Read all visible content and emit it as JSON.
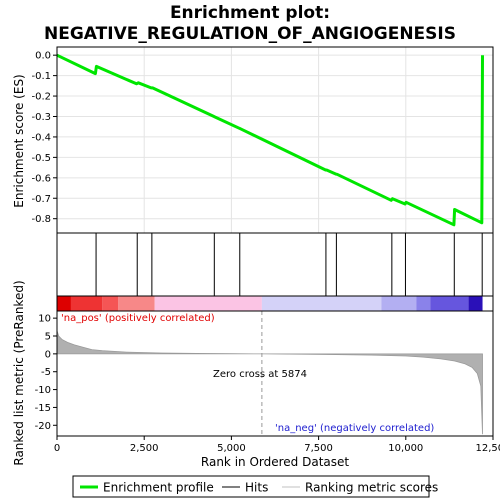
{
  "chart_data": {
    "type": "line",
    "title_line1": "Enrichment plot:",
    "title_line2": "NEGATIVE_REGULATION_OF_ANGIOGENESIS",
    "top_panel": {
      "ylabel": "Enrichment score (ES)",
      "ylim": [
        -0.87,
        0.04
      ],
      "yticks": [
        0.0,
        -0.1,
        -0.2,
        -0.3,
        -0.4,
        -0.5,
        -0.6,
        -0.7,
        -0.8
      ],
      "ytick_labels": [
        "0.0",
        "-0.1",
        "-0.2",
        "-0.3",
        "-0.4",
        "-0.5",
        "-0.6",
        "-0.7",
        "-0.8"
      ],
      "grid": true,
      "series": [
        {
          "name": "Enrichment profile",
          "color": "#00e600",
          "x": [
            0,
            1100,
            1130,
            2280,
            2330,
            2700,
            2740,
            4500,
            4520,
            5230,
            5260,
            7700,
            7730,
            8000,
            8030,
            9580,
            9620,
            9980,
            10010,
            11380,
            11400,
            12180,
            12200
          ],
          "y": [
            0.0,
            -0.09,
            -0.055,
            -0.14,
            -0.135,
            -0.16,
            -0.16,
            -0.3,
            -0.302,
            -0.358,
            -0.36,
            -0.562,
            -0.562,
            -0.582,
            -0.583,
            -0.71,
            -0.702,
            -0.728,
            -0.72,
            -0.83,
            -0.755,
            -0.82,
            0.0
          ]
        }
      ]
    },
    "hits": {
      "name": "Hits",
      "color": "#000000",
      "positions": [
        1120,
        2300,
        2720,
        4510,
        5240,
        7710,
        8010,
        9600,
        9990,
        11390,
        12190
      ]
    },
    "bottom_panel": {
      "ylabel": "Ranked list metric (PreRanked)",
      "ylim": [
        -23,
        12
      ],
      "yticks": [
        10,
        5,
        0,
        -5,
        -10,
        -15,
        -20
      ],
      "ytick_labels": [
        "10",
        "5",
        "0",
        "-5",
        "-10",
        "-15",
        "-20"
      ],
      "metric_name": "Ranking metric scores",
      "metric_color": "#b0b0b0",
      "metric_x": [
        0,
        50,
        150,
        300,
        500,
        800,
        1000,
        1300,
        2000,
        3000,
        4000,
        5000,
        5874,
        7000,
        8000,
        9000,
        10000,
        10500,
        11000,
        11400,
        11700,
        11900,
        12050,
        12150,
        12200
      ],
      "metric_y": [
        6.5,
        5.0,
        4.0,
        3.2,
        2.5,
        1.7,
        1.2,
        0.9,
        0.5,
        0.25,
        0.12,
        0.05,
        0.0,
        -0.1,
        -0.2,
        -0.35,
        -0.6,
        -0.9,
        -1.4,
        -2.0,
        -2.8,
        -3.8,
        -5.5,
        -9.0,
        -22.5
      ],
      "pos_label": "'na_pos' (positively correlated)",
      "neg_label": "'na_neg' (negatively correlated)",
      "zero_cross_label": "Zero cross at 5874",
      "zero_cross": 5874
    },
    "xaxis": {
      "xlabel": "Rank in Ordered Dataset",
      "xlim": [
        0,
        12500
      ],
      "xticks": [
        0,
        2500,
        5000,
        7500,
        10000,
        12500
      ],
      "xtick_labels": [
        "0",
        "2,500",
        "5,000",
        "7,500",
        "10,000",
        "12,500"
      ]
    },
    "heatbar": {
      "segments": [
        {
          "start": 0,
          "end": 400,
          "color": "#dd0000"
        },
        {
          "start": 400,
          "end": 1300,
          "color": "#ee3333"
        },
        {
          "start": 1300,
          "end": 1750,
          "color": "#f55555"
        },
        {
          "start": 1750,
          "end": 2800,
          "color": "#f78888"
        },
        {
          "start": 2800,
          "end": 5874,
          "color": "#fbc4e4"
        },
        {
          "start": 5874,
          "end": 9300,
          "color": "#d4d2f8"
        },
        {
          "start": 9300,
          "end": 10300,
          "color": "#b3aff2"
        },
        {
          "start": 10300,
          "end": 10700,
          "color": "#8a82ea"
        },
        {
          "start": 10700,
          "end": 11800,
          "color": "#6656de"
        },
        {
          "start": 11800,
          "end": 12200,
          "color": "#2a10b8"
        }
      ]
    },
    "legend": {
      "items": [
        {
          "label": "Enrichment profile",
          "color": "#00e600",
          "style": "thick"
        },
        {
          "label": "Hits",
          "color": "#000000",
          "style": "thin"
        },
        {
          "label": "Ranking metric scores",
          "color": "#c0c0c0",
          "style": "thin"
        }
      ]
    }
  }
}
